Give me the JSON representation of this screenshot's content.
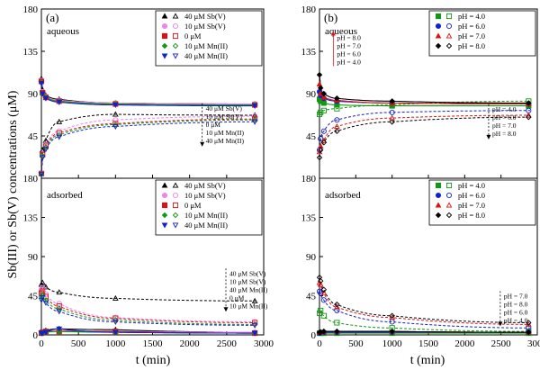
{
  "ylabel": "Sb(III) or Sb(V) concentrations (μM)",
  "xlabel": "t (min)",
  "xticks": [
    "0",
    "500",
    "1000",
    "1500",
    "2000",
    "2500",
    "3000"
  ],
  "yticks": [
    "0",
    "45",
    "90",
    "135",
    "180"
  ],
  "chart_data": [
    {
      "type": "scatter",
      "panel": "(a)",
      "region": "aqueous",
      "xlim": [
        0,
        3000
      ],
      "ylim": [
        0,
        180
      ],
      "legend": "top-right",
      "series": [
        {
          "name": "40 μM Sb(V)",
          "color": "#000000",
          "marker": "triangle",
          "x": [
            0,
            15,
            60,
            240,
            1000,
            2880
          ],
          "filled": [
            106,
            94,
            88,
            84,
            80,
            79
          ],
          "open": [
            6,
            30,
            40,
            60,
            68,
            67
          ]
        },
        {
          "name": "10 μM Sb(V)",
          "color": "#ee82ee",
          "marker": "circle",
          "x": [
            0,
            15,
            60,
            240,
            1000,
            2880
          ],
          "filled": [
            104,
            92,
            87,
            83,
            80,
            79
          ],
          "open": [
            5,
            26,
            36,
            50,
            62,
            66
          ]
        },
        {
          "name": "0 μM",
          "color": "#dd1111",
          "marker": "square",
          "x": [
            0,
            15,
            60,
            240,
            1000,
            2880
          ],
          "filled": [
            103,
            91,
            86,
            82,
            79,
            78
          ],
          "open": [
            5,
            25,
            34,
            48,
            58,
            63
          ]
        },
        {
          "name": "10 μM Mn(II)",
          "color": "#119911",
          "marker": "diamond",
          "x": [
            0,
            15,
            60,
            240,
            1000,
            2880
          ],
          "filled": [
            102,
            90,
            86,
            82,
            79,
            78
          ],
          "open": [
            4,
            24,
            33,
            46,
            57,
            62
          ]
        },
        {
          "name": "40 μM Mn(II)",
          "color": "#1122cc",
          "marker": "triangle-down",
          "x": [
            0,
            15,
            60,
            240,
            1000,
            2880
          ],
          "filled": [
            101,
            90,
            85,
            81,
            78,
            77
          ],
          "open": [
            4,
            22,
            31,
            44,
            55,
            60
          ]
        }
      ],
      "annotation": {
        "labels": [
          "40 μM Sb(V)",
          "10 μM Sb(V)",
          "0 μM",
          "10 μM Mn(II)",
          "40 μM Mn(II)"
        ]
      }
    },
    {
      "type": "scatter",
      "panel": "(a)",
      "region": "adsorbed",
      "xlim": [
        0,
        3000
      ],
      "ylim": [
        0,
        180
      ],
      "legend": "top-right",
      "series": [
        {
          "name": "40 μM Sb(V)",
          "color": "#000000",
          "marker": "triangle",
          "x": [
            0,
            15,
            60,
            240,
            1000,
            2880
          ],
          "filled": [
            2,
            3,
            5,
            7,
            6,
            3
          ],
          "open": [
            58,
            60,
            55,
            49,
            42,
            39
          ]
        },
        {
          "name": "10 μM Sb(V)",
          "color": "#ee82ee",
          "marker": "circle",
          "x": [
            0,
            15,
            60,
            240,
            1000,
            2880
          ],
          "filled": [
            2,
            3,
            4,
            5,
            4,
            3
          ],
          "open": [
            52,
            54,
            47,
            36,
            20,
            15
          ]
        },
        {
          "name": "0 μM",
          "color": "#dd1111",
          "marker": "square",
          "x": [
            0,
            15,
            60,
            240,
            1000,
            2880
          ],
          "filled": [
            2,
            3,
            4,
            4,
            4,
            2
          ],
          "open": [
            48,
            50,
            44,
            33,
            19,
            14
          ]
        },
        {
          "name": "10 μM Mn(II)",
          "color": "#119911",
          "marker": "diamond",
          "x": [
            0,
            15,
            60,
            240,
            1000,
            2880
          ],
          "filled": [
            2,
            2,
            3,
            4,
            3,
            2
          ],
          "open": [
            44,
            46,
            40,
            30,
            17,
            12
          ]
        },
        {
          "name": "40 μM Mn(II)",
          "color": "#1122cc",
          "marker": "triangle-down",
          "x": [
            0,
            15,
            60,
            240,
            1000,
            2880
          ],
          "filled": [
            2,
            2,
            3,
            7,
            3,
            2
          ],
          "open": [
            40,
            43,
            37,
            27,
            15,
            11
          ]
        }
      ],
      "annotation": {
        "labels": [
          "40 μM Sb(V)",
          "10 μM Sb(V)",
          "40 μM Mn(II)",
          "0 μM",
          "10 μM Mn(II)"
        ]
      }
    },
    {
      "type": "scatter",
      "panel": "(b)",
      "region": "aqueous",
      "xlim": [
        0,
        3000
      ],
      "ylim": [
        0,
        180
      ],
      "legend": "top-right",
      "series": [
        {
          "name": "pH = 4.0",
          "color": "#119911",
          "marker": "square",
          "x": [
            0,
            15,
            60,
            240,
            1000,
            2880
          ],
          "filled": [
            84,
            82,
            80,
            78,
            77,
            77
          ],
          "open": [
            68,
            70,
            72,
            74,
            78,
            82
          ]
        },
        {
          "name": "pH = 6.0",
          "color": "#1122cc",
          "marker": "circle",
          "x": [
            0,
            15,
            60,
            240,
            1000,
            2880
          ],
          "filled": [
            92,
            88,
            85,
            82,
            80,
            79
          ],
          "open": [
            30,
            42,
            50,
            62,
            70,
            72
          ]
        },
        {
          "name": "pH = 7.0",
          "color": "#dd1111",
          "marker": "triangle",
          "x": [
            0,
            15,
            60,
            240,
            1000,
            2880
          ],
          "filled": [
            100,
            90,
            86,
            83,
            80,
            79
          ],
          "open": [
            28,
            34,
            40,
            55,
            64,
            67
          ]
        },
        {
          "name": "pH = 8.0",
          "color": "#000000",
          "marker": "diamond",
          "x": [
            0,
            15,
            60,
            240,
            1000,
            2880
          ],
          "filled": [
            110,
            96,
            90,
            85,
            82,
            80
          ],
          "open": [
            22,
            30,
            38,
            50,
            60,
            65
          ]
        }
      ],
      "annotations": [
        {
          "labels": [
            "pH = 8.0",
            "pH = 7.0",
            "pH = 6.0",
            "pH = 4.0"
          ],
          "direction": "up"
        },
        {
          "labels": [
            "pH = 4.0",
            "pH = 6.0",
            "pH = 7.0",
            "pH = 8.0"
          ],
          "direction": "down"
        }
      ]
    },
    {
      "type": "scatter",
      "panel": "(b)",
      "region": "adsorbed",
      "xlim": [
        0,
        3000
      ],
      "ylim": [
        0,
        180
      ],
      "legend": "top-right",
      "series": [
        {
          "name": "pH = 4.0",
          "color": "#119911",
          "marker": "square",
          "x": [
            0,
            15,
            60,
            240,
            1000,
            2880
          ],
          "filled": [
            2,
            2,
            2,
            2,
            2,
            2
          ],
          "open": [
            25,
            28,
            22,
            14,
            8,
            4
          ]
        },
        {
          "name": "pH = 6.0",
          "color": "#1122cc",
          "marker": "circle",
          "x": [
            0,
            15,
            60,
            240,
            1000,
            2880
          ],
          "filled": [
            2,
            3,
            3,
            3,
            3,
            3
          ],
          "open": [
            50,
            48,
            40,
            28,
            15,
            8
          ]
        },
        {
          "name": "pH = 7.0",
          "color": "#dd1111",
          "marker": "triangle",
          "x": [
            0,
            15,
            60,
            240,
            1000,
            2880
          ],
          "filled": [
            3,
            3,
            4,
            4,
            4,
            3
          ],
          "open": [
            60,
            58,
            48,
            32,
            20,
            12
          ]
        },
        {
          "name": "pH = 8.0",
          "color": "#000000",
          "marker": "diamond",
          "x": [
            0,
            15,
            60,
            240,
            1000,
            2880
          ],
          "filled": [
            3,
            3,
            4,
            4,
            4,
            3
          ],
          "open": [
            66,
            62,
            52,
            35,
            22,
            14
          ]
        }
      ],
      "annotation": {
        "labels": [
          "pH = 7.0",
          "pH = 8.0",
          "pH = 6.0",
          "pH = 4.0"
        ]
      }
    }
  ]
}
